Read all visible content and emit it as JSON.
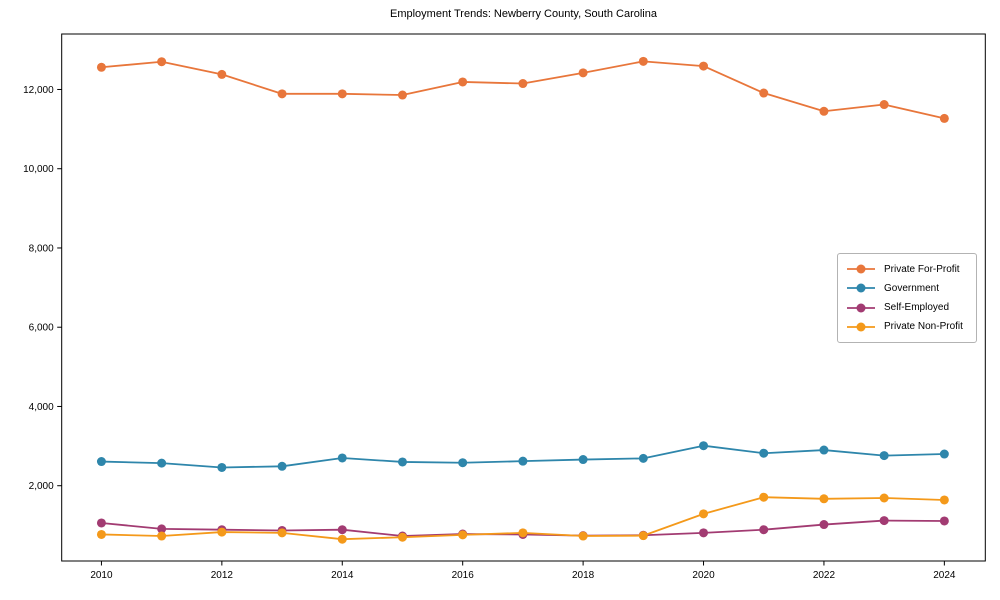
{
  "title": "Employment Trends: Newberry County, South Carolina",
  "chart_data": {
    "type": "line",
    "x": [
      2010,
      2011,
      2012,
      2013,
      2014,
      2015,
      2016,
      2017,
      2018,
      2019,
      2020,
      2021,
      2022,
      2023,
      2024
    ],
    "series": [
      {
        "name": "Private For-Profit",
        "color": "#E8763B",
        "values": [
          12560,
          12700,
          12380,
          11890,
          11890,
          11860,
          12190,
          12150,
          12420,
          12710,
          12590,
          11910,
          11450,
          11620,
          11270
        ]
      },
      {
        "name": "Government",
        "color": "#2E86AB",
        "values": [
          2610,
          2570,
          2460,
          2490,
          2700,
          2600,
          2580,
          2620,
          2660,
          2690,
          3010,
          2820,
          2900,
          2760,
          2800
        ]
      },
      {
        "name": "Self-Employed",
        "color": "#A23B72",
        "values": [
          1060,
          910,
          890,
          870,
          890,
          730,
          780,
          770,
          740,
          750,
          810,
          890,
          1020,
          1120,
          1110
        ]
      },
      {
        "name": "Private Non-Profit",
        "color": "#F4991A",
        "values": [
          770,
          730,
          830,
          810,
          650,
          700,
          760,
          810,
          730,
          740,
          1290,
          1710,
          1670,
          1690,
          1640
        ]
      }
    ],
    "xlabel": "",
    "ylabel": "",
    "x_ticks": {
      "values": [
        2010,
        2012,
        2014,
        2016,
        2018,
        2020,
        2022,
        2024
      ],
      "labels": [
        "2010",
        "2012",
        "2014",
        "2016",
        "2018",
        "2020",
        "2022",
        "2024"
      ]
    },
    "y_ticks": {
      "values": [
        2000,
        4000,
        6000,
        8000,
        10000,
        12000
      ],
      "labels": [
        "2,000",
        "4,000",
        "6,000",
        "8,000",
        "10,000",
        "12,000"
      ]
    },
    "xlim": [
      2009.34,
      2024.68
    ],
    "ylim": [
      100,
      13400
    ],
    "grid": false,
    "legend_position": "center-right",
    "marker": "circle"
  },
  "style_colors": {
    "spine": "#000000",
    "legend_border": "#b3b3b3",
    "background": "#ffffff"
  }
}
